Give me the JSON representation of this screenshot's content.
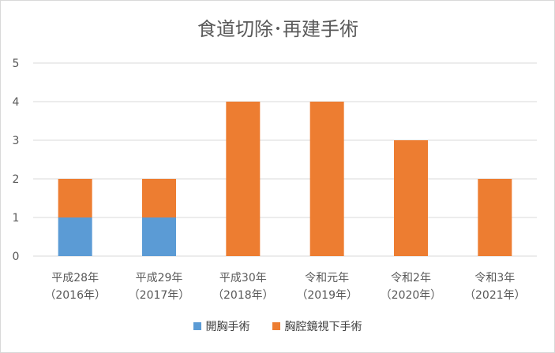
{
  "chart_data": {
    "type": "bar",
    "stacked": true,
    "title": "食道切除･再建手術",
    "categories": [
      [
        "平成28年",
        "（2016年）"
      ],
      [
        "平成29年",
        "（2017年）"
      ],
      [
        "平成30年",
        "（2018年）"
      ],
      [
        "令和元年",
        "（2019年）"
      ],
      [
        "令和2年",
        "（2020年）"
      ],
      [
        "令和3年",
        "（2021年）"
      ]
    ],
    "series": [
      {
        "name": "開胸手術",
        "color": "#5b9bd5",
        "values": [
          1,
          1,
          0,
          0,
          0,
          0
        ]
      },
      {
        "name": "胸腔鏡視下手術",
        "color": "#ed7d31",
        "values": [
          1,
          1,
          4,
          4,
          3,
          2
        ]
      }
    ],
    "ylim": [
      0,
      5
    ],
    "yticks": [
      0,
      1,
      2,
      3,
      4,
      5
    ],
    "grid": true,
    "legend_position": "bottom"
  }
}
